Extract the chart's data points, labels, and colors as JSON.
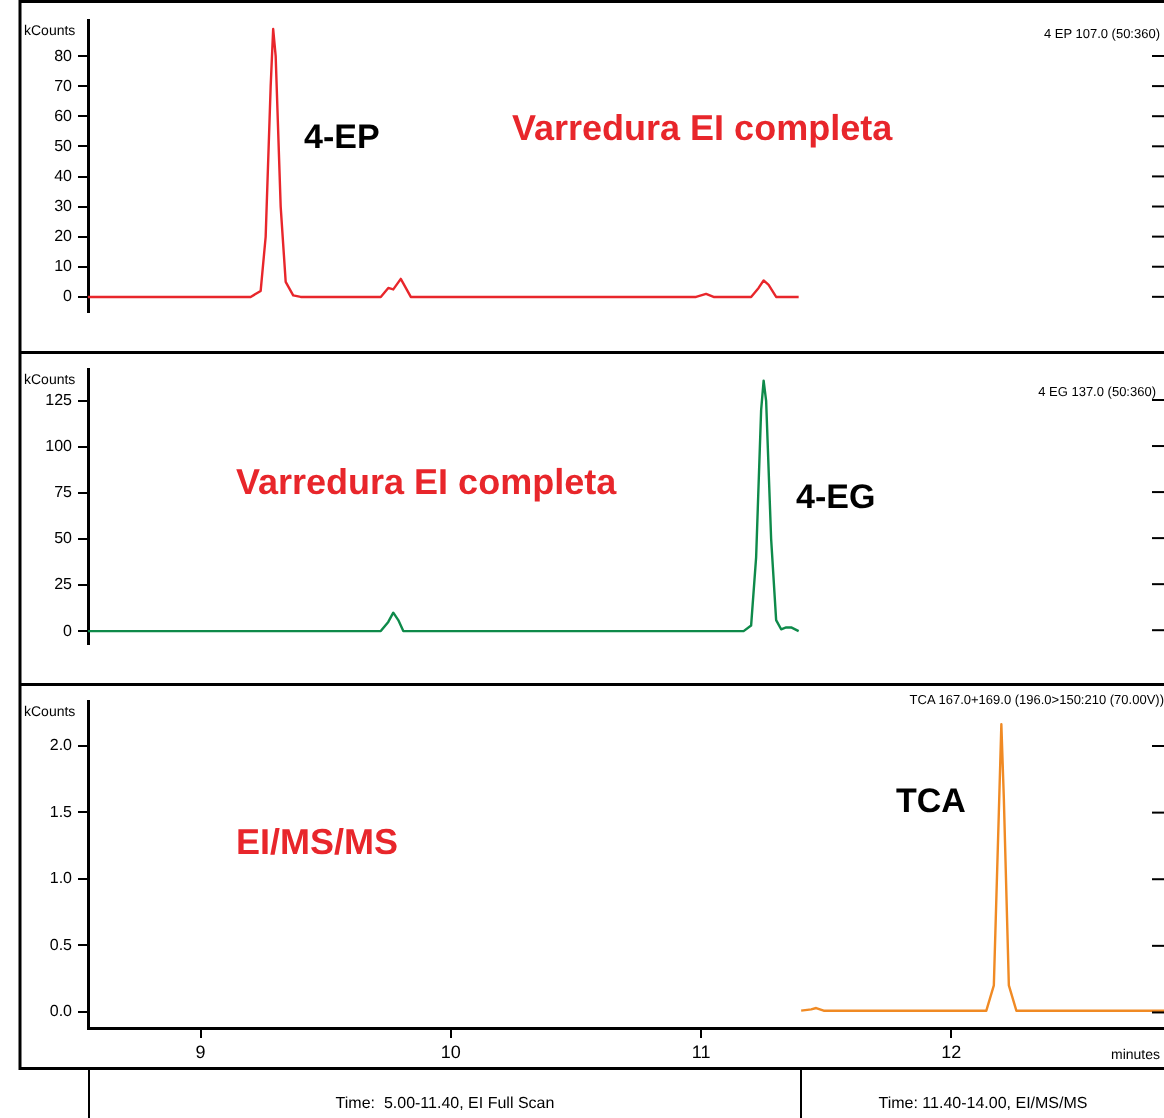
{
  "chart_data": [
    {
      "type": "line",
      "ylabel": "kCounts",
      "xlim": [
        8.55,
        12.85
      ],
      "xticks": [
        9,
        10,
        11,
        12
      ],
      "ylim": [
        -5,
        92
      ],
      "yticks": [
        0,
        10,
        20,
        30,
        40,
        50,
        60,
        70,
        80
      ],
      "tick_labels": "y",
      "grid": false,
      "legend": false,
      "marker": "none",
      "annotations": [
        "4 EP 107.0 (50:360)",
        "4-EP",
        "Varredura EI completa"
      ],
      "series": [
        {
          "color": "#e8262b",
          "x": [
            8.55,
            9.2,
            9.24,
            9.26,
            9.28,
            9.29,
            9.3,
            9.32,
            9.34,
            9.37,
            9.4,
            9.72,
            9.75,
            9.77,
            9.8,
            9.82,
            9.84,
            10.98,
            11.02,
            11.05,
            11.2,
            11.23,
            11.25,
            11.27,
            11.3,
            11.39
          ],
          "values": [
            0,
            0,
            2,
            20,
            70,
            89,
            80,
            30,
            5,
            0.5,
            0,
            0,
            3,
            2.5,
            6,
            3,
            0,
            0,
            1,
            0,
            0,
            3,
            5.5,
            4,
            0,
            0
          ]
        }
      ]
    },
    {
      "type": "line",
      "ylabel": "kCounts",
      "xlim": [
        8.55,
        12.85
      ],
      "xticks": [
        9,
        10,
        11,
        12
      ],
      "ylim": [
        -7,
        142
      ],
      "yticks": [
        0,
        25,
        50,
        75,
        100,
        125
      ],
      "tick_labels": "y",
      "grid": false,
      "legend": false,
      "marker": "none",
      "annotations": [
        "4 EG 137.0 (50:360)",
        "4-EG",
        "Varredura EI completa"
      ],
      "series": [
        {
          "color": "#0e8a4a",
          "x": [
            8.55,
            9.72,
            9.75,
            9.77,
            9.79,
            9.81,
            11.17,
            11.2,
            11.22,
            11.24,
            11.25,
            11.26,
            11.28,
            11.3,
            11.32,
            11.34,
            11.36,
            11.39
          ],
          "values": [
            0,
            0,
            5,
            10,
            6,
            0,
            0,
            3,
            40,
            120,
            136,
            125,
            50,
            6,
            1,
            2,
            2,
            0
          ]
        }
      ]
    },
    {
      "type": "line",
      "ylabel": "kCounts",
      "xlabel": "minutes",
      "xlim": [
        8.55,
        12.85
      ],
      "xticks": [
        9,
        10,
        11,
        12
      ],
      "ylim": [
        -0.12,
        2.33
      ],
      "yticks": [
        {
          "value": 0,
          "label": "0.0"
        },
        0.5,
        {
          "value": 1,
          "label": "1.0"
        },
        1.5,
        {
          "value": 2,
          "label": "2.0"
        }
      ],
      "grid": false,
      "legend": false,
      "marker": "none",
      "annotations": [
        "TCA 167.0+169.0 (196.0>150:210 (70.00V))",
        "TCA",
        "EI/MS/MS",
        "Time:  5.00-11.40, EI Full Scan",
        "Time: 11.40-14.00, EI/MS/MS"
      ],
      "series": [
        {
          "color": "#f08a24",
          "x": [
            11.4,
            11.44,
            11.46,
            11.49,
            11.6,
            11.63,
            11.66,
            12.14,
            12.17,
            12.19,
            12.2,
            12.21,
            12.23,
            12.26,
            12.5,
            12.85
          ],
          "values": [
            0.01,
            0.02,
            0.03,
            0.01,
            0.01,
            0.01,
            0.01,
            0.01,
            0.2,
            1.5,
            2.16,
            1.6,
            0.2,
            0.01,
            0.01,
            0.01
          ]
        }
      ]
    }
  ]
}
